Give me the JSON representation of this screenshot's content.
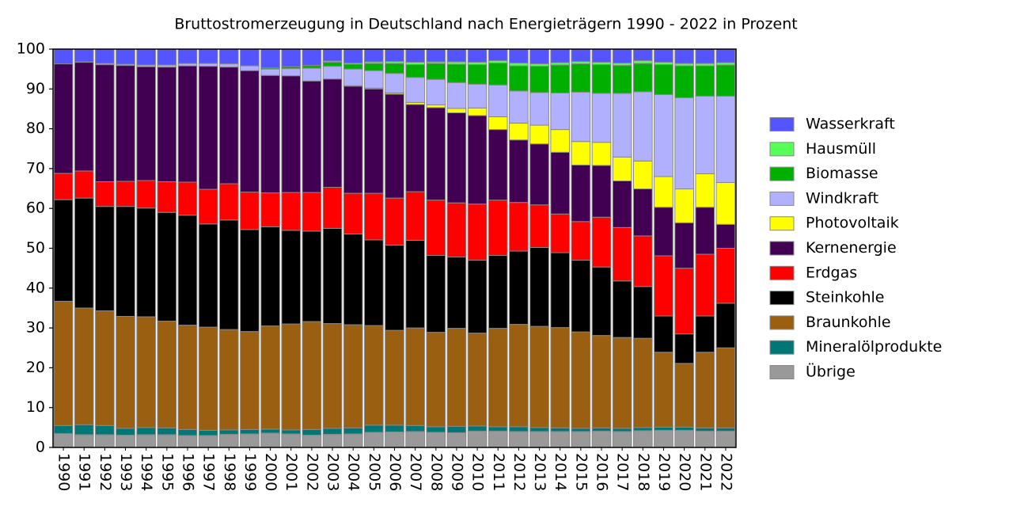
{
  "chart_data": {
    "type": "stacked_bar",
    "title": "Bruttostromerzeugung in Deutschland nach Energieträgern 1990 - 2022 in Prozent",
    "categories": [
      "1990",
      "1991",
      "1992",
      "1993",
      "1994",
      "1995",
      "1996",
      "1997",
      "1998",
      "1999",
      "2000",
      "2001",
      "2002",
      "2003",
      "2004",
      "2005",
      "2006",
      "2007",
      "2008",
      "2009",
      "2010",
      "2011",
      "2012",
      "2013",
      "2014",
      "2015",
      "2016",
      "2017",
      "2018",
      "2019",
      "2020",
      "2021",
      "2022"
    ],
    "series": [
      {
        "name": "Übrige",
        "color": "#999999",
        "values": [
          3.5,
          3.2,
          3.2,
          3.1,
          3.2,
          3.2,
          3.0,
          3.0,
          3.3,
          3.4,
          3.6,
          3.4,
          3.1,
          3.3,
          3.4,
          3.8,
          3.9,
          4.0,
          3.8,
          3.7,
          4.1,
          4.1,
          4.0,
          4.0,
          4.0,
          4.0,
          4.1,
          4.0,
          4.2,
          4.3,
          4.3,
          4.1,
          4.1
        ]
      },
      {
        "name": "Mineralölprodukte",
        "color": "#007777",
        "values": [
          2.0,
          2.5,
          2.3,
          1.7,
          1.8,
          1.7,
          1.5,
          1.3,
          1.1,
          1.1,
          1.0,
          1.0,
          1.4,
          1.5,
          1.5,
          1.8,
          1.7,
          1.5,
          1.4,
          1.6,
          1.3,
          1.1,
          1.2,
          1.0,
          0.9,
          0.8,
          0.8,
          0.8,
          0.8,
          0.8,
          0.8,
          0.8,
          0.8
        ]
      },
      {
        "name": "Braunkohle",
        "color": "#9a5f10",
        "values": [
          31.2,
          29.3,
          28.8,
          28.1,
          27.8,
          26.8,
          26.2,
          25.9,
          25.2,
          24.6,
          25.9,
          26.6,
          27.1,
          26.3,
          25.9,
          25.0,
          23.8,
          24.5,
          23.7,
          24.6,
          23.3,
          24.7,
          25.7,
          25.4,
          25.2,
          24.2,
          23.2,
          22.8,
          22.4,
          18.8,
          16.0,
          19.0,
          20.1
        ]
      },
      {
        "name": "Steinkohle",
        "color": "#000000",
        "values": [
          25.5,
          27.6,
          26.2,
          27.6,
          27.3,
          27.3,
          27.6,
          25.9,
          27.5,
          25.6,
          24.9,
          23.5,
          22.7,
          23.9,
          22.8,
          21.5,
          21.4,
          22.0,
          19.3,
          17.9,
          18.3,
          18.3,
          18.4,
          19.8,
          18.8,
          18.0,
          17.2,
          14.2,
          13.0,
          9.1,
          7.4,
          9.1,
          11.2
        ]
      },
      {
        "name": "Erdgas",
        "color": "#ff0000",
        "values": [
          6.6,
          6.8,
          6.2,
          6.3,
          6.9,
          7.7,
          8.3,
          8.7,
          9.1,
          9.4,
          8.5,
          9.5,
          9.7,
          10.3,
          10.2,
          11.7,
          11.8,
          12.2,
          13.9,
          13.6,
          14.1,
          13.9,
          12.2,
          10.7,
          9.7,
          9.7,
          12.5,
          13.4,
          12.7,
          15.1,
          16.5,
          15.5,
          13.8
        ]
      },
      {
        "name": "Kernenergie",
        "color": "#420052",
        "values": [
          27.5,
          27.3,
          29.4,
          29.1,
          28.6,
          28.8,
          29.2,
          30.9,
          29.3,
          30.5,
          29.5,
          29.3,
          28.0,
          27.2,
          26.9,
          26.2,
          26.1,
          21.9,
          23.2,
          22.6,
          22.2,
          17.7,
          15.7,
          15.3,
          15.5,
          14.2,
          13.0,
          11.7,
          11.8,
          12.2,
          11.4,
          11.8,
          6.0
        ]
      },
      {
        "name": "Photovoltaik",
        "color": "#ffff00",
        "values": [
          0,
          0,
          0,
          0,
          0,
          0,
          0,
          0,
          0,
          0,
          0,
          0,
          0,
          0,
          0.1,
          0.2,
          0.3,
          0.5,
          0.7,
          1.1,
          1.9,
          3.2,
          4.2,
          4.7,
          5.7,
          5.9,
          5.8,
          6.0,
          7.0,
          7.7,
          8.5,
          8.4,
          10.5
        ]
      },
      {
        "name": "Windkraft",
        "color": "#b0b0ff",
        "values": [
          0,
          0.1,
          0.3,
          0.3,
          0.4,
          0.5,
          0.6,
          0.7,
          0.8,
          1.2,
          1.6,
          1.8,
          3.2,
          3.2,
          4.2,
          4.4,
          4.9,
          6.3,
          6.4,
          6.5,
          6.0,
          8.0,
          8.1,
          8.2,
          9.2,
          12.4,
          12.3,
          16.0,
          17.4,
          20.6,
          22.9,
          19.5,
          21.7
        ]
      },
      {
        "name": "Biomasse",
        "color": "#00b000",
        "values": [
          0,
          0,
          0,
          0,
          0,
          0,
          0,
          0,
          0,
          0,
          0.3,
          0.5,
          0.7,
          1.0,
          1.2,
          1.8,
          2.5,
          3.2,
          4.0,
          4.6,
          4.9,
          5.5,
          6.3,
          6.6,
          7.0,
          7.1,
          7.2,
          7.0,
          7.1,
          7.5,
          8.0,
          7.6,
          7.8
        ]
      },
      {
        "name": "Hausmüll",
        "color": "#55ff55",
        "values": [
          0,
          0,
          0,
          0,
          0,
          0,
          0,
          0,
          0,
          0,
          0,
          0,
          0,
          0.3,
          0.3,
          0.4,
          0.5,
          0.6,
          0.4,
          0.6,
          0.6,
          0.6,
          0.7,
          0.6,
          0.6,
          0.6,
          0.6,
          0.6,
          0.7,
          0.6,
          0.6,
          0.6,
          0.6
        ]
      },
      {
        "name": "Wasserkraft",
        "color": "#5555ff",
        "values": [
          3.7,
          3.2,
          3.6,
          3.8,
          4.0,
          4.0,
          3.6,
          3.6,
          3.7,
          4.2,
          4.7,
          4.4,
          4.1,
          3.0,
          3.5,
          3.2,
          3.1,
          3.3,
          3.2,
          3.2,
          3.3,
          2.9,
          3.5,
          3.7,
          3.4,
          3.1,
          3.3,
          3.5,
          2.9,
          3.3,
          3.6,
          3.6,
          3.4
        ]
      }
    ],
    "ylim": [
      0,
      100
    ],
    "yticks": [
      0,
      10,
      20,
      30,
      40,
      50,
      60,
      70,
      80,
      90,
      100
    ],
    "legend": "right"
  }
}
